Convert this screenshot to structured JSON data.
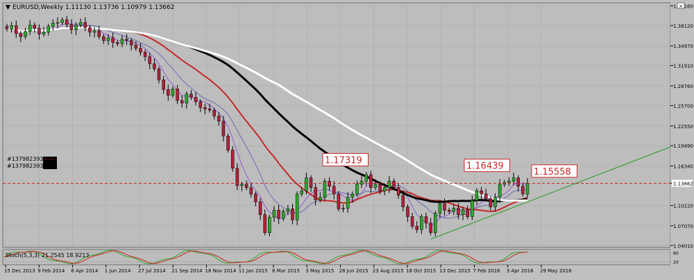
{
  "header": {
    "title": "EURUSD,Weekly  1.11130 1.13736 1.10979 1.13662"
  },
  "order_labels": [
    "#137982393 sl",
    "#137982393 buy"
  ],
  "indicator_title": "Stoch(5,3,3) 21.2545 18.9213",
  "colors": {
    "background": "#c0c0c0",
    "panel": "#bdbdbd",
    "grid": "#a8a8a8",
    "bull": "#2ca82c",
    "bear": "#b3203a",
    "ma_purple": "#9a58d8",
    "ma_blue": "#6b6bb3",
    "ma_red": "#c62828",
    "ma_black": "#000000",
    "ma_white": "#ffffff",
    "trendline": "#1f9a1f",
    "level_line": "#c62828",
    "stoch_main": "#2ca82c",
    "stoch_signal": "#d02020",
    "price_label_bg": "#ffffff"
  },
  "chart_data": [
    {
      "type": "candlestick",
      "symbol": "EURUSD",
      "timeframe": "Weekly",
      "ohlc_current": {
        "open": 1.1113,
        "high": 1.13736,
        "low": 1.10979,
        "close": 1.13662
      },
      "y_ticks": [
        "1.41160",
        "1.38120",
        "1.34970",
        "1.31910",
        "1.28760",
        "1.25700",
        "1.22550",
        "1.19490",
        "1.16340",
        "1.13662",
        "1.10220",
        "1.07070",
        "1.04010"
      ],
      "ylim": [
        1.0372,
        1.4165
      ],
      "x_ticks": [
        "15 Dec 2013",
        "9 Feb 2014",
        "6 Apr 2014",
        "1 Jun 2014",
        "27 Jul 2014",
        "21 Sep 2014",
        "16 Nov 2014",
        "11 Jan 2015",
        "8 Mar 2015",
        "3 May 2015",
        "28 Jun 2015",
        "23 Aug 2015",
        "18 Oct 2015",
        "13 Dec 2015",
        "7 Feb 2016",
        "3 Apr 2016",
        "29 May 2016"
      ],
      "closes": [
        1.376,
        1.381,
        1.369,
        1.364,
        1.372,
        1.382,
        1.377,
        1.368,
        1.371,
        1.38,
        1.385,
        1.386,
        1.39,
        1.383,
        1.375,
        1.382,
        1.386,
        1.378,
        1.371,
        1.373,
        1.364,
        1.358,
        1.362,
        1.355,
        1.353,
        1.36,
        1.358,
        1.351,
        1.346,
        1.34,
        1.333,
        1.322,
        1.314,
        1.297,
        1.282,
        1.273,
        1.283,
        1.265,
        1.261,
        1.275,
        1.27,
        1.263,
        1.254,
        1.252,
        1.25,
        1.241,
        1.233,
        1.21,
        1.188,
        1.16,
        1.133,
        1.135,
        1.13,
        1.12,
        1.108,
        1.088,
        1.06,
        1.084,
        1.095,
        1.082,
        1.093,
        1.097,
        1.08,
        1.12,
        1.125,
        1.145,
        1.13,
        1.111,
        1.115,
        1.14,
        1.132,
        1.12,
        1.097,
        1.098,
        1.115,
        1.12,
        1.135,
        1.14,
        1.15,
        1.13,
        1.135,
        1.125,
        1.13,
        1.14,
        1.13,
        1.118,
        1.1,
        1.085,
        1.07,
        1.065,
        1.085,
        1.075,
        1.06,
        1.09,
        1.105,
        1.095,
        1.093,
        1.098,
        1.088,
        1.096,
        1.085,
        1.11,
        1.125,
        1.12,
        1.113,
        1.1,
        1.115,
        1.135,
        1.138,
        1.14,
        1.145,
        1.132,
        1.12,
        1.1366
      ],
      "annotations": [
        {
          "text": "1.17319",
          "price": 1.17319
        },
        {
          "text": "1.16439",
          "price": 1.16439
        },
        {
          "text": "1.15558",
          "price": 1.15558
        }
      ],
      "current_price": 1.13662
    },
    {
      "type": "line",
      "title": "Stoch(5,3,3) 21.2545 18.9213",
      "series": [
        {
          "name": "main",
          "values": [
            21.2545
          ]
        },
        {
          "name": "signal",
          "values": [
            18.9213
          ]
        }
      ],
      "levels": [
        80,
        20
      ],
      "ylim": [
        0,
        100
      ]
    }
  ]
}
